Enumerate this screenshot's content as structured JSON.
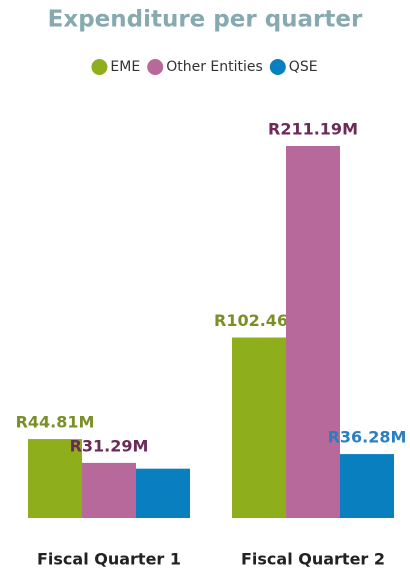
{
  "chart_data": {
    "type": "bar",
    "title": "Expenditure per quarter",
    "categories": [
      "Fiscal Quarter 1",
      "Fiscal Quarter 2"
    ],
    "series": [
      {
        "name": "EME",
        "color": "#8fae1b",
        "label_color": "#7a8f27",
        "values": [
          44.81,
          102.46
        ],
        "value_labels": [
          "R44.81M",
          "R102.46M"
        ]
      },
      {
        "name": "Other Entities",
        "color": "#b7699b",
        "label_color": "#6b2a57",
        "values": [
          31.29,
          211.19
        ],
        "value_labels": [
          "R31.29M",
          "R211.19M"
        ]
      },
      {
        "name": "QSE",
        "color": "#0a7fc0",
        "label_color": "#2a7fc0",
        "values": [
          28,
          36.28
        ],
        "value_labels": [
          null,
          "R36.28M"
        ]
      }
    ],
    "legend": "top"
  }
}
